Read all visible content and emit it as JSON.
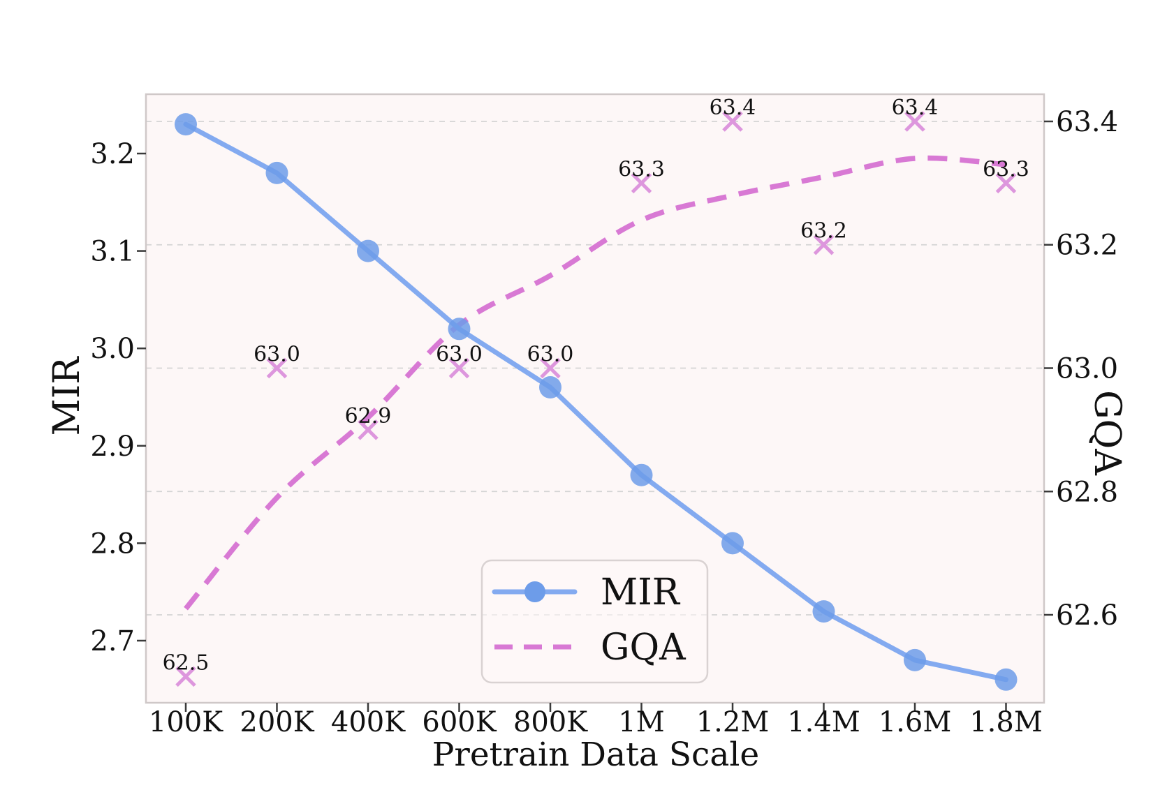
{
  "chart_data": {
    "type": "line",
    "title": "",
    "xlabel": "Pretrain Data Scale",
    "ylabel_left": "MIR",
    "ylabel_right": "GQA",
    "categories": [
      "100K",
      "200K",
      "400K",
      "600K",
      "800K",
      "1M",
      "1.2M",
      "1.4M",
      "1.6M",
      "1.8M"
    ],
    "series": [
      {
        "name": "MIR",
        "axis": "left",
        "type": "line-with-circle-markers",
        "values": [
          3.23,
          3.18,
          3.1,
          3.02,
          2.96,
          2.87,
          2.8,
          2.73,
          2.68,
          2.66
        ]
      },
      {
        "name": "GQA",
        "axis": "right",
        "type": "dashed-trend-with-x-markers",
        "scatter_values": [
          62.5,
          63.0,
          62.9,
          63.0,
          63.0,
          63.3,
          63.4,
          63.2,
          63.4,
          63.3
        ],
        "scatter_labels": [
          "62.5",
          "63.0",
          "62.9",
          "63.0",
          "63.0",
          "63.3",
          "63.4",
          "63.2",
          "63.4",
          "63.3"
        ],
        "trend_values": [
          62.61,
          62.79,
          62.92,
          63.07,
          63.15,
          63.24,
          63.28,
          63.31,
          63.34,
          63.33
        ]
      }
    ],
    "left_axis": {
      "tick_labels": [
        "3.2",
        "3.1",
        "3.0",
        "2.9",
        "2.8",
        "2.7"
      ],
      "tick_values": [
        3.2,
        3.1,
        3.0,
        2.9,
        2.8,
        2.7
      ],
      "range": [
        2.64,
        3.26
      ]
    },
    "right_axis": {
      "tick_labels": [
        "63.4",
        "63.2",
        "63.0",
        "62.8",
        "62.6"
      ],
      "tick_values": [
        63.4,
        63.2,
        63.0,
        62.8,
        62.6
      ],
      "range": [
        62.46,
        63.44
      ]
    },
    "grid": {
      "show": true,
      "orientation": "horizontal",
      "at": "right-axis-ticks",
      "style": "dashed"
    },
    "legend": {
      "position": "lower-center",
      "entries": [
        "MIR",
        "GQA"
      ]
    }
  },
  "colors": {
    "mir_line": "#83aaf0",
    "mir_marker": "#6d9ce9",
    "gqa_trend": "#d879d4",
    "gqa_x_marker": "#dd96dd",
    "gqa_label_text": "#b511b5",
    "grid_line": "#d4d4d4",
    "plot_background": "#fdf7f7",
    "spine": "#cfc8c8",
    "tick_mark": "#3a3a3a"
  }
}
